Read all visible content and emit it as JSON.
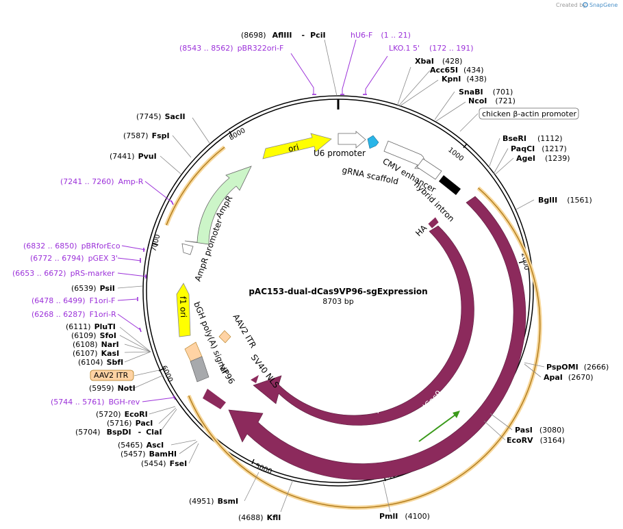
{
  "credit": {
    "created_by": "Created by",
    "brand": "SnapGene"
  },
  "plasmid": {
    "name": "pAC153-dual-dCas9VP96-sgExpression",
    "length": "8703 bp"
  },
  "tick_labels": [
    "1000",
    "2000",
    "3000",
    "4000",
    "5000",
    "6000",
    "7000",
    "8000"
  ],
  "sites": [
    {
      "pos": "(8698)",
      "name": "AflIII",
      "join": "-",
      "name2": "PciI"
    },
    {
      "name": "XbaI",
      "pos": "(428)"
    },
    {
      "name": "Acc65I",
      "pos": "(434)"
    },
    {
      "name": "KpnI",
      "pos": "(438)"
    },
    {
      "name": "SnaBI",
      "pos": "(701)"
    },
    {
      "name": "NcoI",
      "pos": "(721)"
    },
    {
      "name": "BseRI",
      "pos": "(1112)"
    },
    {
      "name": "PaqCI",
      "pos": "(1217)"
    },
    {
      "name": "AgeI",
      "pos": "(1239)"
    },
    {
      "name": "BglII",
      "pos": "(1561)"
    },
    {
      "name": "PspOMI",
      "pos": "(2666)"
    },
    {
      "name": "ApaI",
      "pos": "(2670)"
    },
    {
      "name": "PasI",
      "pos": "(3080)"
    },
    {
      "name": "EcoRV",
      "pos": "(3164)"
    },
    {
      "name": "PmlI",
      "pos": "(4100)"
    },
    {
      "pos": "(4688)",
      "name": "KflI"
    },
    {
      "pos": "(4951)",
      "name": "BsmI"
    },
    {
      "pos": "(5454)",
      "name": "FseI"
    },
    {
      "pos": "(5457)",
      "name": "BamHI"
    },
    {
      "pos": "(5465)",
      "name": "AscI"
    },
    {
      "pos": "(5704)",
      "name": "BspDI",
      "join": "-",
      "name2": "ClaI"
    },
    {
      "pos": "(5716)",
      "name": "PacI"
    },
    {
      "pos": "(5720)",
      "name": "EcoRI"
    },
    {
      "pos": "(5959)",
      "name": "NotI"
    },
    {
      "pos": "(6104)",
      "name": "SbfI"
    },
    {
      "pos": "(6107)",
      "name": "KasI"
    },
    {
      "pos": "(6108)",
      "name": "NarI"
    },
    {
      "pos": "(6109)",
      "name": "SfoI"
    },
    {
      "pos": "(6111)",
      "name": "PluTI"
    },
    {
      "pos": "(6539)",
      "name": "PsiI"
    },
    {
      "pos": "(7441)",
      "name": "PvuI"
    },
    {
      "pos": "(7587)",
      "name": "FspI"
    },
    {
      "pos": "(7745)",
      "name": "SacII"
    }
  ],
  "primers": [
    {
      "name": "hU6-F",
      "range": "(1 .. 21)"
    },
    {
      "name": "LKO.1 5'",
      "range": "(172 .. 191)"
    },
    {
      "range": "(8543 .. 8562)",
      "name": "pBR322ori-F"
    },
    {
      "range": "(7241 .. 7260)",
      "name": "Amp-R"
    },
    {
      "range": "(6832 .. 6850)",
      "name": "pBRforEco"
    },
    {
      "range": "(6772 .. 6794)",
      "name": "pGEX 3'"
    },
    {
      "range": "(6653 .. 6672)",
      "name": "pRS-marker"
    },
    {
      "range": "(6478 .. 6499)",
      "name": "F1ori-F"
    },
    {
      "range": "(6268 .. 6287)",
      "name": "F1ori-R"
    },
    {
      "range": "(5744 .. 5761)",
      "name": "BGH-rev"
    }
  ],
  "features": {
    "ori": "ori",
    "u6_promoter": "U6 promoter",
    "grna_scaffold": "gRNA scaffold",
    "cmv_enhancer": "CMV enhancer",
    "hybrid_intron": "hybrid intron",
    "chicken_promoter": "chicken β-actin promoter",
    "ha": "HA",
    "dcas9_inner": "dCas9",
    "dcas9_outer": "dCas9",
    "sv40_nls": "SV40 NLS",
    "vp96": "VP96",
    "aav2_itr_inner": "AAV2 ITR",
    "aav2_itr_outer": "AAV2 ITR",
    "bgh_polya": "bGH poly(A) signal",
    "f1_ori": "f1 ori",
    "ampr_promoter": "AmpR promoter",
    "ampr": "AmpR"
  },
  "colors": {
    "dcas9": "#8c2a5c",
    "ori": "#ffff00",
    "ampr": "#ccf5c8",
    "orf_highlight": "#f7d79a",
    "gray_feature": "#a7a9ac",
    "itr_feature": "#ffd3a4",
    "scaffold": "#29b5e8",
    "primer": "#9b30d9"
  }
}
